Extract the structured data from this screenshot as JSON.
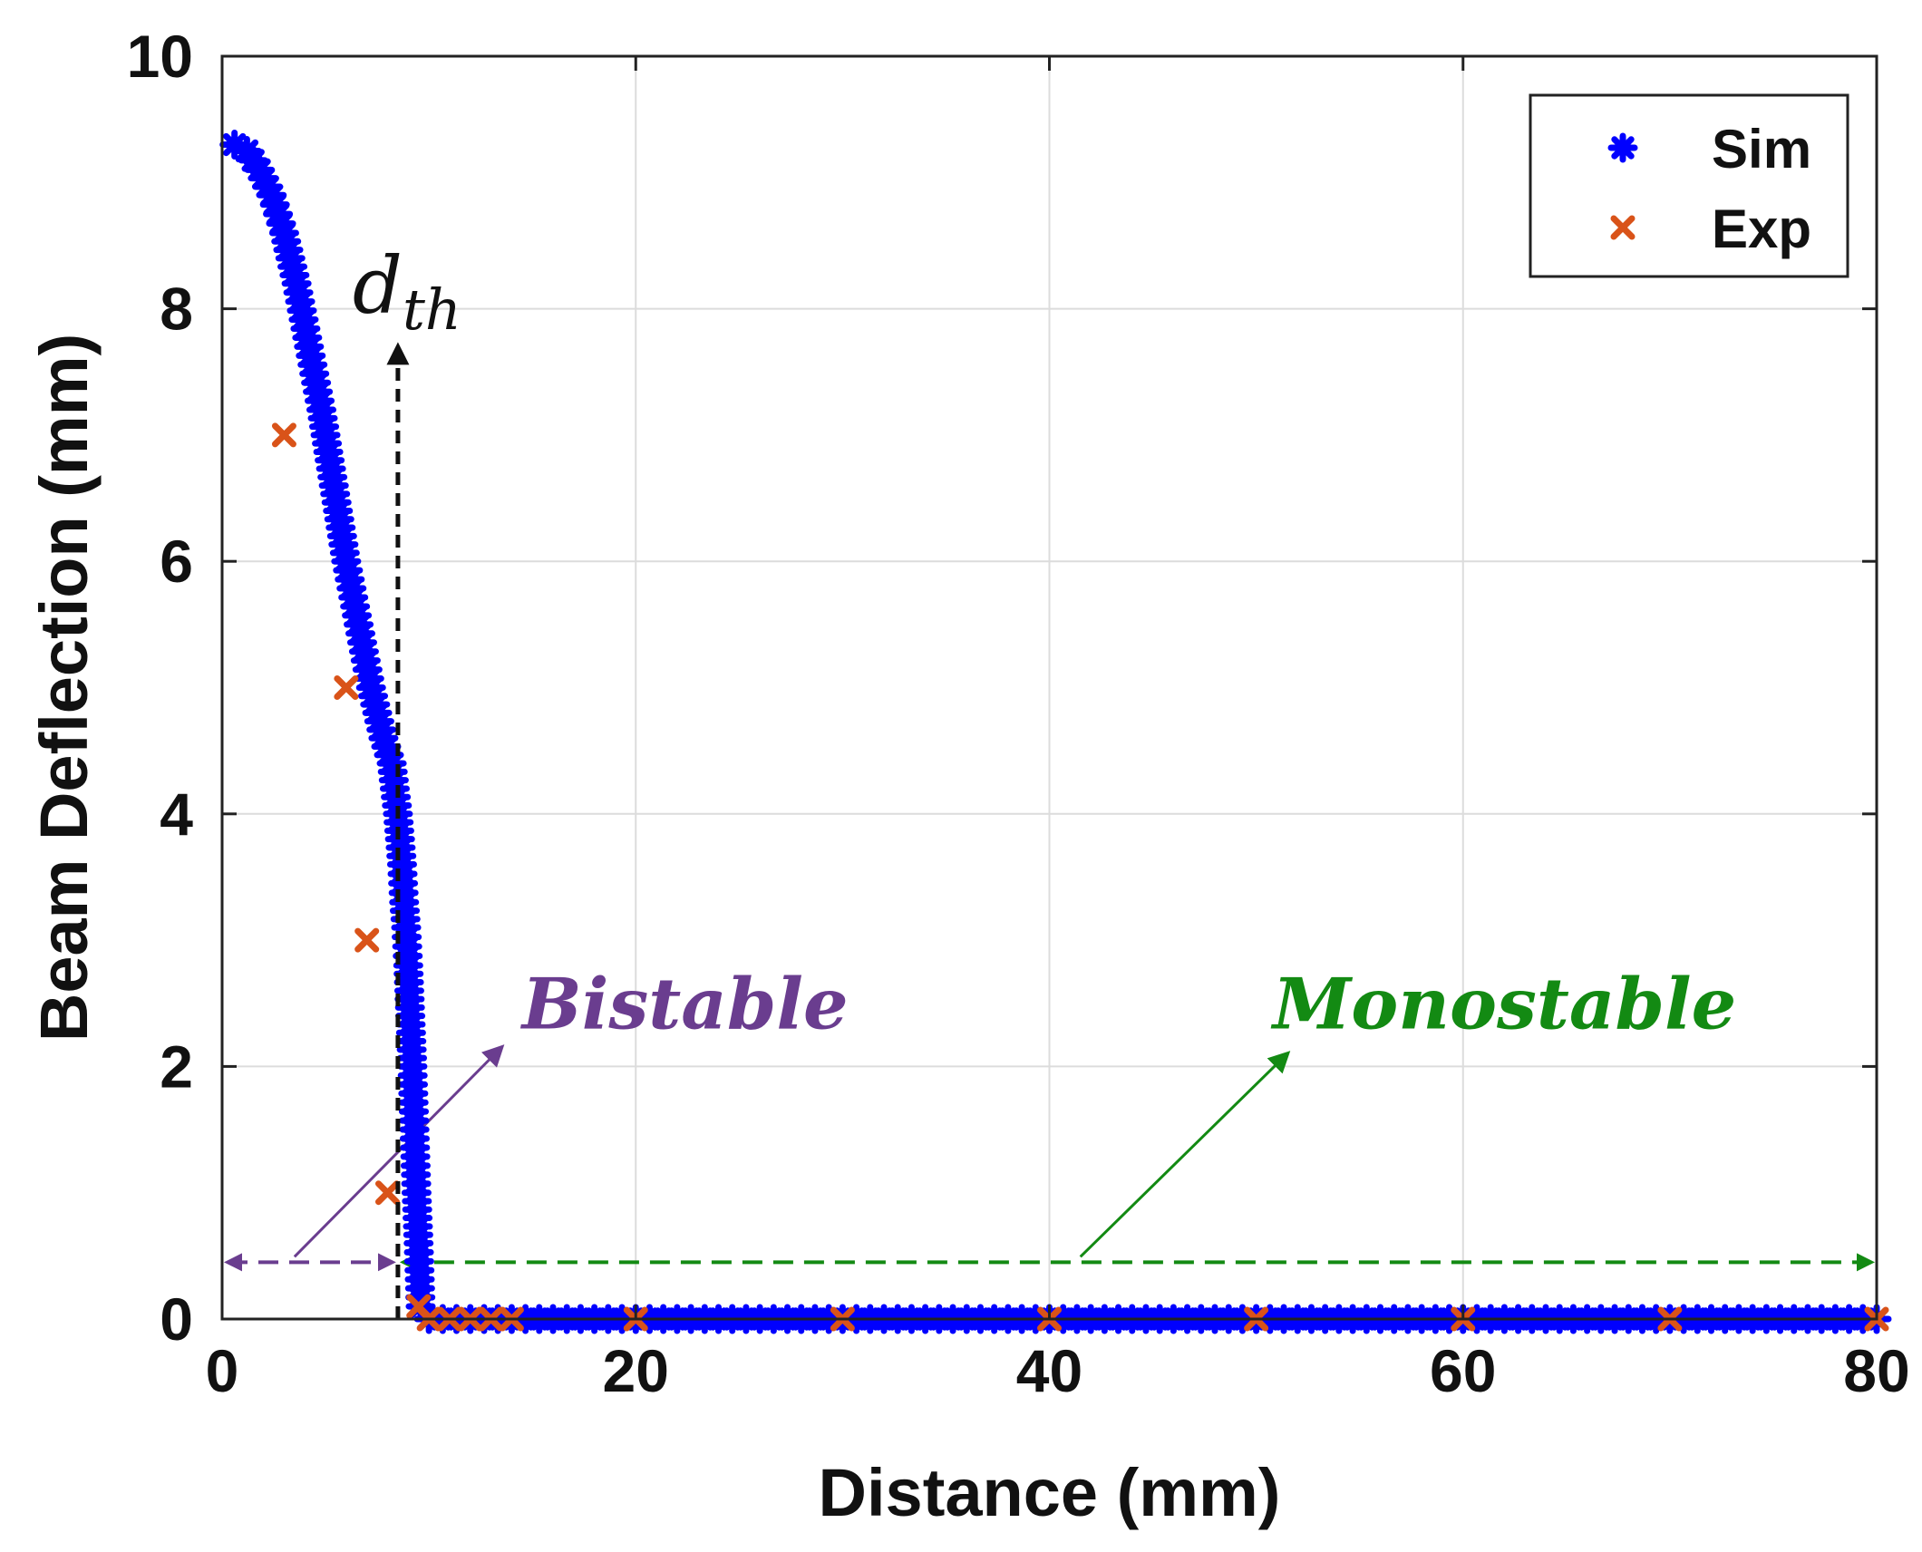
{
  "chart_data": {
    "type": "scatter",
    "title": "",
    "xlabel": "Distance (mm)",
    "ylabel": "Beam Deflection (mm)",
    "xlim": [
      0,
      80
    ],
    "ylim": [
      0,
      10
    ],
    "xticks": [
      "0",
      "20",
      "40",
      "60",
      "80"
    ],
    "yticks": [
      "0",
      "2",
      "4",
      "6",
      "8",
      "10"
    ],
    "grid": true,
    "legend_position": "top-right",
    "series": [
      {
        "name": "Sim",
        "marker": "asterisk",
        "color": "#0000ff",
        "x": [
          0.6,
          1.2,
          1.8,
          2.4,
          3.0,
          3.6,
          4.2,
          4.8,
          5.4,
          6.0,
          6.6,
          7.2,
          7.8,
          8.2,
          8.5,
          8.7,
          8.8,
          8.9,
          9.0,
          9.1,
          9.2,
          9.3,
          9.4,
          9.5,
          9.6,
          10,
          12,
          14,
          16,
          18,
          20,
          24,
          28,
          32,
          36,
          40,
          44,
          48,
          52,
          56,
          60,
          64,
          68,
          72,
          76,
          80
        ],
        "y": [
          9.3,
          9.25,
          9.1,
          8.9,
          8.6,
          8.2,
          7.7,
          7.2,
          6.6,
          6.0,
          5.5,
          5.0,
          4.6,
          4.4,
          4.0,
          3.6,
          3.3,
          3.1,
          2.8,
          2.4,
          2.0,
          1.5,
          1.0,
          0.6,
          0.1,
          0,
          0,
          0,
          0,
          0,
          0,
          0,
          0,
          0,
          0,
          0,
          0,
          0,
          0,
          0,
          0,
          0,
          0,
          0,
          0,
          0
        ]
      },
      {
        "name": "Exp",
        "marker": "x",
        "color": "#d95319",
        "x": [
          3,
          6,
          7,
          8,
          9.5,
          10,
          11,
          12,
          13,
          14,
          20,
          30,
          40,
          50,
          60,
          70,
          80
        ],
        "y": [
          7,
          5,
          3,
          1,
          0.1,
          0,
          0,
          0,
          0,
          0,
          0,
          0,
          0,
          0,
          0,
          0,
          0
        ]
      }
    ],
    "threshold": {
      "label_main": "d",
      "label_sub": "th",
      "x": 8.5,
      "arrow_top_y": 7.7
    },
    "regions": [
      {
        "label": "Bistable",
        "color": "#6a3d8f",
        "x_from": 0,
        "x_to": 8.5,
        "arrow_y": 0.45
      },
      {
        "label": "Monostable",
        "color": "#138a13",
        "x_from": 8.5,
        "x_to": 80,
        "arrow_y": 0.45
      }
    ]
  }
}
